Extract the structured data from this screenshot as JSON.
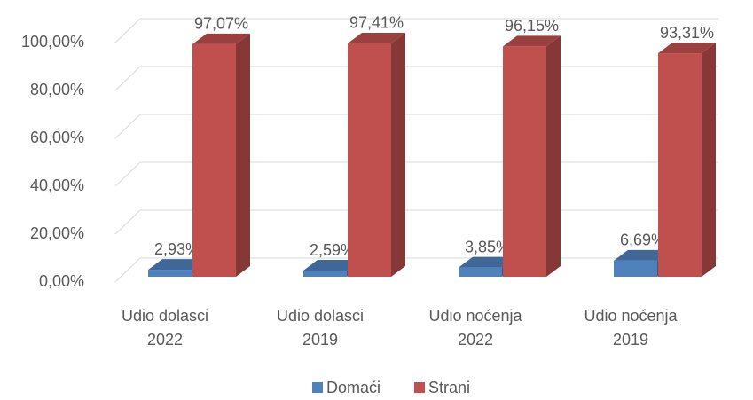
{
  "chart_data": {
    "type": "bar3d",
    "categories": [
      "Udio dolasci 2022",
      "Udio dolasci 2019",
      "Udio noćenja 2022",
      "Udio noćenja 2019"
    ],
    "series": [
      {
        "name": "Domaći",
        "color": "#4f81bd",
        "values": [
          2.93,
          2.59,
          3.85,
          6.69
        ],
        "value_labels": [
          "2,93%",
          "2,59%",
          "3,85%",
          "6,69%"
        ]
      },
      {
        "name": "Strani",
        "color": "#c0504d",
        "values": [
          97.07,
          97.41,
          96.15,
          93.31
        ],
        "value_labels": [
          "97,07%",
          "97,41%",
          "96,15%",
          "93,31%"
        ]
      }
    ],
    "ylim": [
      0,
      100
    ],
    "yticks": [
      {
        "value": 0,
        "label": "0,00%"
      },
      {
        "value": 20,
        "label": "20,00%"
      },
      {
        "value": 40,
        "label": "40,00%"
      },
      {
        "value": 60,
        "label": "60,00%"
      },
      {
        "value": 80,
        "label": "80,00%"
      },
      {
        "value": 100,
        "label": "100,00%"
      }
    ],
    "grid": true,
    "legend": "bottom"
  }
}
